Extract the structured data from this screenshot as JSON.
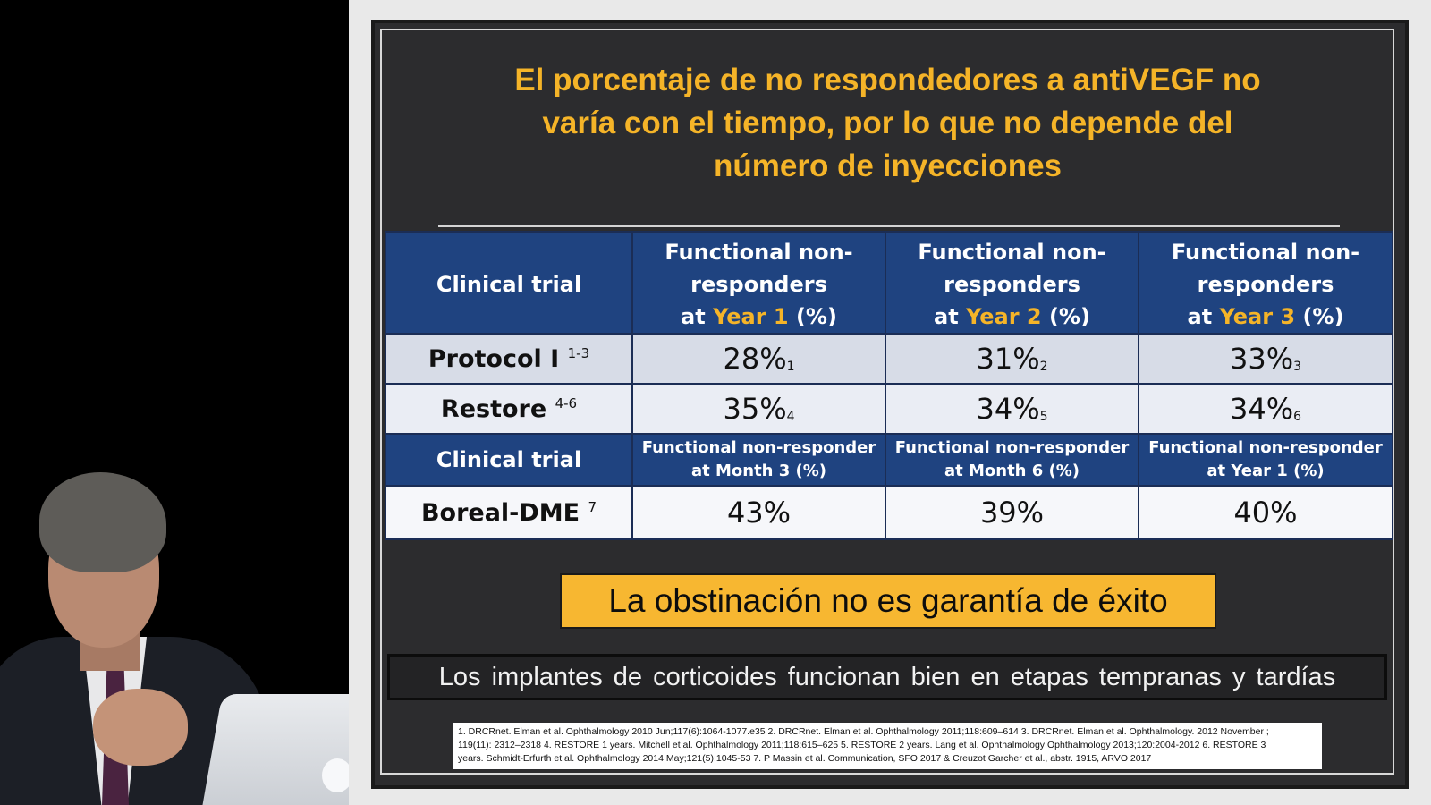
{
  "slide": {
    "title_lines": [
      "El porcentaje de no respondedores a antiVEGF no",
      "varía con el tiempo, por lo que no depende del",
      "número de inyecciones"
    ],
    "table": {
      "header1": {
        "trial_label": "Clinical trial",
        "columns": [
          {
            "line1": "Functional non-",
            "line2": "responders",
            "pre": "at ",
            "period": "Year 1",
            "post": " (%)"
          },
          {
            "line1": "Functional non-",
            "line2": "responders",
            "pre": "at ",
            "period": "Year 2",
            "post": " (%)"
          },
          {
            "line1": "Functional non-",
            "line2": "responders",
            "pre": "at ",
            "period": "Year 3",
            "post": " (%)"
          }
        ]
      },
      "rows_top": [
        {
          "name": "Protocol I",
          "ref": "1-3",
          "values": [
            {
              "value": "28%",
              "ref": "1"
            },
            {
              "value": "31%",
              "ref": "2"
            },
            {
              "value": "33%",
              "ref": "3"
            }
          ]
        },
        {
          "name": "Restore",
          "ref": "4-6",
          "values": [
            {
              "value": "35%",
              "ref": "4"
            },
            {
              "value": "34%",
              "ref": "5"
            },
            {
              "value": "34%",
              "ref": "6"
            }
          ]
        }
      ],
      "header2": {
        "trial_label": "Clinical trial",
        "columns": [
          {
            "line1": "Functional non-responder",
            "line2": "at Month 3 (%)"
          },
          {
            "line1": "Functional non-responder",
            "line2": "at Month 6 (%)"
          },
          {
            "line1": "Functional non-responder",
            "line2": "at Year 1 (%)"
          }
        ]
      },
      "rows_bottom": [
        {
          "name": "Boreal-DME",
          "ref": "7",
          "values": [
            {
              "value": "43%"
            },
            {
              "value": "39%"
            },
            {
              "value": "40%"
            }
          ]
        }
      ]
    },
    "banner": "La obstinación no es garantía de éxito",
    "subline": "Los implantes de corticoides funcionan bien en etapas tempranas y tardías",
    "references": [
      "1. DRCRnet. Elman et al. Ophthalmology 2010 Jun;117(6):1064-1077.e35  2. DRCRnet. Elman et al. Ophthalmology 2011;118:609–614  3. DRCRnet. Elman et al. Ophthalmology. 2012 November ;",
      "119(11): 2312–2318  4. RESTORE 1 years. Mitchell et al. Ophthalmology 2011;118:615–625   5. RESTORE 2 years. Lang et al. Ophthalmology Ophthalmology 2013;120:2004-2012   6.  RESTORE 3",
      "years. Schmidt-Erfurth et al. Ophthalmology 2014 May;121(5):1045-53   7. P Massin et al. Communication, SFO 2017  &   Creuzot Garcher et al., abstr. 1915, ARVO 2017"
    ]
  },
  "colors": {
    "title": "#f5b428",
    "header_bg": "#1f4380",
    "banner_bg": "#f7b731",
    "slide_bg": "#2c2c2e"
  }
}
